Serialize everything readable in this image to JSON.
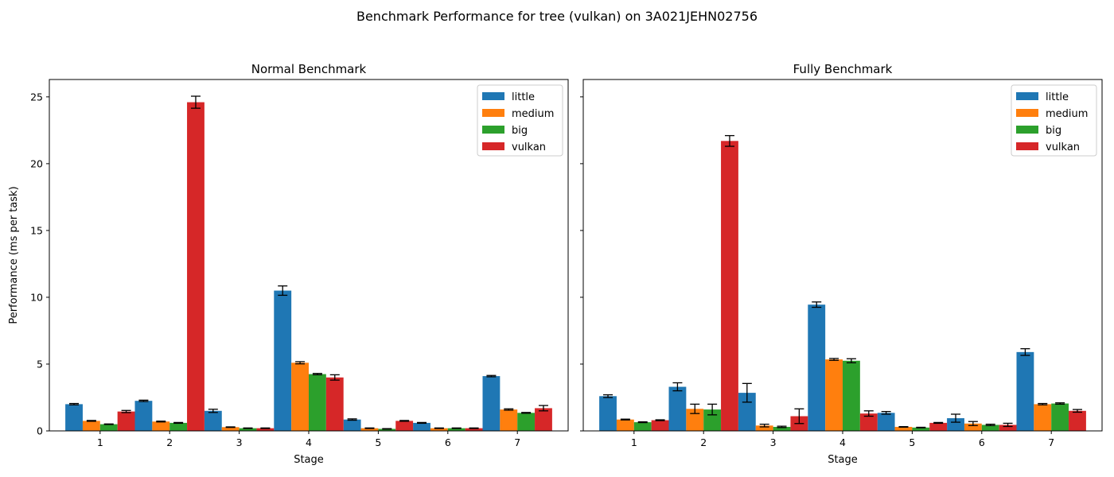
{
  "figure": {
    "suptitle": "Benchmark Performance for tree (vulkan) on 3A021JEHN02756"
  },
  "colors": {
    "little": "#1f77b4",
    "medium": "#ff7f0e",
    "big": "#2ca02c",
    "vulkan": "#d62728"
  },
  "chart_data": [
    {
      "type": "bar",
      "title": "Normal Benchmark",
      "xlabel": "Stage",
      "ylabel": "Performance (ms per task)",
      "ylim": [
        0,
        26.3
      ],
      "yticks": [
        0,
        5,
        10,
        15,
        20,
        25
      ],
      "legend": "top-right",
      "categories": [
        "1",
        "2",
        "3",
        "4",
        "5",
        "6",
        "7"
      ],
      "series": [
        {
          "name": "little",
          "values": [
            2.0,
            2.25,
            1.5,
            10.5,
            0.85,
            0.6,
            4.1
          ],
          "errors": [
            0.05,
            0.05,
            0.12,
            0.35,
            0.05,
            0.03,
            0.05
          ]
        },
        {
          "name": "medium",
          "values": [
            0.75,
            0.7,
            0.28,
            5.1,
            0.2,
            0.2,
            1.6
          ],
          "errors": [
            0.03,
            0.03,
            0.02,
            0.08,
            0.02,
            0.02,
            0.05
          ]
        },
        {
          "name": "big",
          "values": [
            0.5,
            0.6,
            0.2,
            4.25,
            0.15,
            0.2,
            1.35
          ],
          "errors": [
            0.02,
            0.03,
            0.02,
            0.05,
            0.02,
            0.02,
            0.03
          ]
        },
        {
          "name": "vulkan",
          "values": [
            1.45,
            24.6,
            0.2,
            4.0,
            0.75,
            0.2,
            1.7
          ],
          "errors": [
            0.08,
            0.45,
            0.02,
            0.2,
            0.03,
            0.02,
            0.2
          ]
        }
      ]
    },
    {
      "type": "bar",
      "title": "Fully Benchmark",
      "xlabel": "Stage",
      "ylabel": "",
      "ylim": [
        0,
        26.3
      ],
      "yticks": [
        0,
        5,
        10,
        15,
        20,
        25
      ],
      "legend": "top-right",
      "categories": [
        "1",
        "2",
        "3",
        "4",
        "5",
        "6",
        "7"
      ],
      "series": [
        {
          "name": "little",
          "values": [
            2.6,
            3.3,
            2.85,
            9.45,
            1.35,
            0.95,
            5.9
          ],
          "errors": [
            0.1,
            0.3,
            0.7,
            0.2,
            0.1,
            0.3,
            0.25
          ]
        },
        {
          "name": "medium",
          "values": [
            0.85,
            1.65,
            0.4,
            5.35,
            0.3,
            0.55,
            2.0
          ],
          "errors": [
            0.03,
            0.35,
            0.1,
            0.07,
            0.02,
            0.15,
            0.05
          ]
        },
        {
          "name": "big",
          "values": [
            0.65,
            1.6,
            0.3,
            5.25,
            0.25,
            0.45,
            2.05
          ],
          "errors": [
            0.03,
            0.4,
            0.05,
            0.15,
            0.02,
            0.05,
            0.05
          ]
        },
        {
          "name": "vulkan",
          "values": [
            0.8,
            21.7,
            1.1,
            1.3,
            0.6,
            0.45,
            1.5
          ],
          "errors": [
            0.03,
            0.4,
            0.55,
            0.2,
            0.03,
            0.12,
            0.1
          ]
        }
      ]
    }
  ]
}
